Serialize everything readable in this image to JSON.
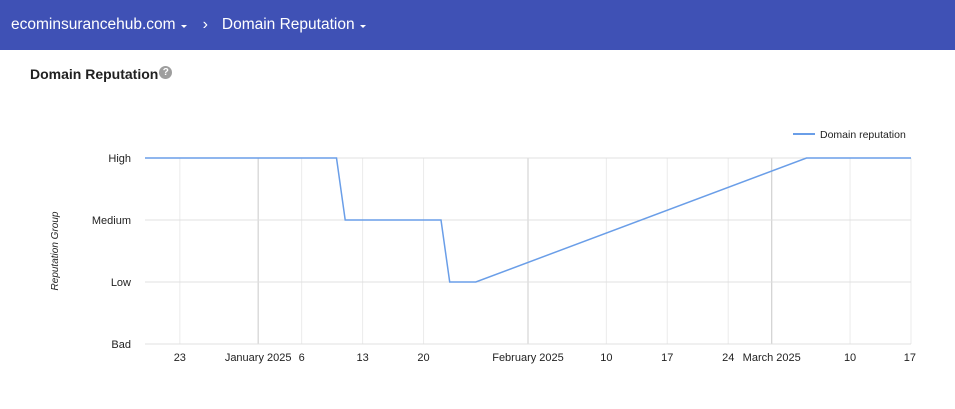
{
  "breadcrumb": {
    "domain": "ecominsurancehub.com",
    "separator": "›",
    "page": "Domain Reputation"
  },
  "section": {
    "title": "Domain Reputation",
    "help_icon": "?"
  },
  "chart_data": {
    "type": "line",
    "ylabel": "Reputation Group",
    "y_categories": [
      "Bad",
      "Low",
      "Medium",
      "High"
    ],
    "x_tick_labels": [
      {
        "date": "2024-12-23",
        "label": "23"
      },
      {
        "date": "2025-01-01",
        "label": "January 2025"
      },
      {
        "date": "2025-01-06",
        "label": "6"
      },
      {
        "date": "2025-01-13",
        "label": "13"
      },
      {
        "date": "2025-01-20",
        "label": "20"
      },
      {
        "date": "2025-02-01",
        "label": "February 2025"
      },
      {
        "date": "2025-02-10",
        "label": "10"
      },
      {
        "date": "2025-02-17",
        "label": "17"
      },
      {
        "date": "2025-02-24",
        "label": "24"
      },
      {
        "date": "2025-03-01",
        "label": "March 2025"
      },
      {
        "date": "2025-03-10",
        "label": "10"
      },
      {
        "date": "2025-03-17",
        "label": "17"
      }
    ],
    "xlim": [
      "2024-12-19",
      "2025-03-17"
    ],
    "series": [
      {
        "name": "Domain reputation",
        "color": "#6a9ee8",
        "points": [
          {
            "x": "2024-12-19",
            "y": "High"
          },
          {
            "x": "2025-01-10",
            "y": "High"
          },
          {
            "x": "2025-01-11",
            "y": "Medium"
          },
          {
            "x": "2025-01-22",
            "y": "Medium"
          },
          {
            "x": "2025-01-23",
            "y": "Low"
          },
          {
            "x": "2025-01-26",
            "y": "Low"
          },
          {
            "x": "2025-03-05",
            "y": "High"
          },
          {
            "x": "2025-03-17",
            "y": "High"
          }
        ]
      }
    ],
    "legend": "top-right",
    "grid": true
  }
}
